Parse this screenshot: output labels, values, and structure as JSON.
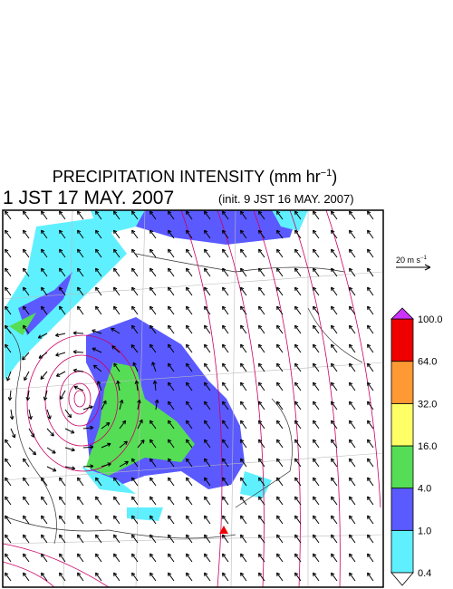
{
  "header": {
    "title": {
      "main": "PRECIPITATION INTENSITY (mm hr",
      "sup": "−1",
      "end": ")"
    },
    "valid_time": "1 JST 17 MAY. 2007",
    "init_time": "(init. 9 JST 16 MAY. 2007)"
  },
  "wind_scale": {
    "main": "20 m s",
    "sup": "−1"
  },
  "colorbar": {
    "labels": [
      "0.4",
      "1.0",
      "4.0",
      "16.0",
      "32.0",
      "64.0",
      "100.0"
    ],
    "colors": [
      "#5ff0ff",
      "#5a5aff",
      "#55dd55",
      "#ffff66",
      "#ff9933",
      "#ee0000"
    ],
    "over_color": "#cc33ff",
    "under_color": "#ffffff"
  }
}
